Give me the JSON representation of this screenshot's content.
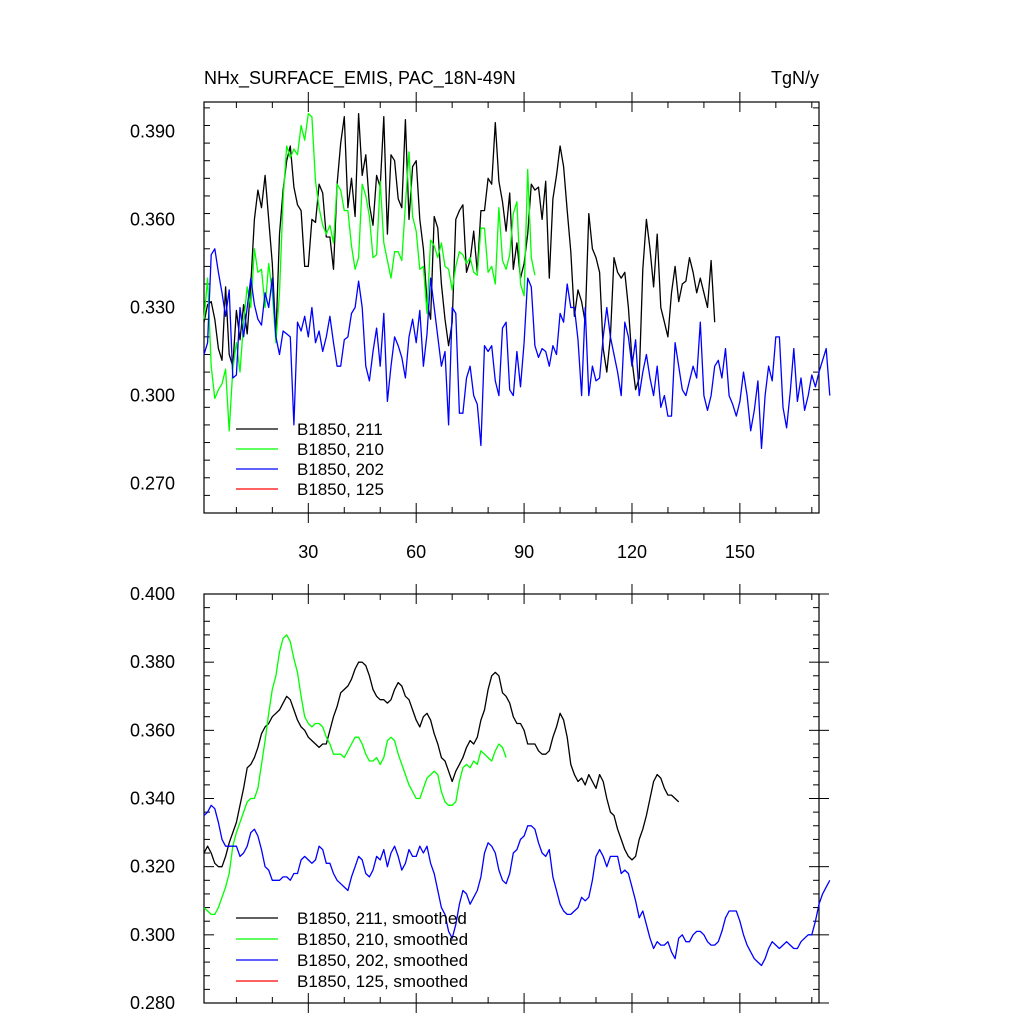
{
  "chart_data": [
    {
      "type": "line",
      "title": "NHx_SURFACE_EMIS, PAC_18N-49N",
      "units": "TgN/y",
      "xlim": [
        1,
        172
      ],
      "ylim": [
        0.26,
        0.4
      ],
      "x_ticks": [
        30,
        60,
        90,
        120,
        150
      ],
      "y_ticks": [
        0.27,
        0.3,
        0.33,
        0.36,
        0.39
      ],
      "y_tick_labels": [
        "0.270",
        "0.300",
        "0.330",
        "0.360",
        "0.390"
      ],
      "x_labels_shown": true,
      "legend_position": "bottom-left",
      "series": [
        {
          "name": "B1850, 211",
          "color": "#000000",
          "values": [
            0.325,
            0.331,
            0.332,
            0.326,
            0.316,
            0.312,
            0.337,
            0.314,
            0.31,
            0.329,
            0.319,
            0.331,
            0.321,
            0.338,
            0.36,
            0.37,
            0.364,
            0.375,
            0.36,
            0.345,
            0.32,
            0.355,
            0.37,
            0.38,
            0.385,
            0.371,
            0.365,
            0.363,
            0.344,
            0.344,
            0.36,
            0.359,
            0.372,
            0.369,
            0.354,
            0.354,
            0.343,
            0.372,
            0.386,
            0.395,
            0.364,
            0.374,
            0.361,
            0.396,
            0.375,
            0.382,
            0.365,
            0.358,
            0.375,
            0.371,
            0.395,
            0.355,
            0.382,
            0.38,
            0.367,
            0.364,
            0.394,
            0.36,
            0.378,
            0.38,
            0.36,
            0.35,
            0.332,
            0.326,
            0.361,
            0.357,
            0.338,
            0.326,
            0.317,
            0.325,
            0.36,
            0.363,
            0.365,
            0.342,
            0.346,
            0.356,
            0.342,
            0.363,
            0.363,
            0.374,
            0.372,
            0.393,
            0.373,
            0.366,
            0.356,
            0.369,
            0.343,
            0.352,
            0.34,
            0.345,
            0.355,
            0.372,
            0.37,
            0.371,
            0.36,
            0.373,
            0.34,
            0.367,
            0.375,
            0.385,
            0.378,
            0.363,
            0.349,
            0.327,
            0.336,
            0.332,
            0.325,
            0.362,
            0.35,
            0.347,
            0.342,
            0.316,
            0.308,
            0.32,
            0.347,
            0.342,
            0.34,
            0.342,
            0.33,
            0.312,
            0.302,
            0.306,
            0.343,
            0.36,
            0.35,
            0.337,
            0.355,
            0.33,
            0.325,
            0.32,
            0.335,
            0.344,
            0.332,
            0.338,
            0.339,
            0.347,
            0.342,
            0.335,
            0.34,
            0.335,
            0.33,
            0.346,
            0.325
          ]
        },
        {
          "name": "B1850, 210",
          "color": "#00ff00",
          "values": [
            0.326,
            0.34,
            0.31,
            0.299,
            0.302,
            0.304,
            0.309,
            0.288,
            0.309,
            0.318,
            0.308,
            0.325,
            0.337,
            0.33,
            0.35,
            0.342,
            0.343,
            0.33,
            0.345,
            0.335,
            0.318,
            0.335,
            0.367,
            0.385,
            0.381,
            0.384,
            0.382,
            0.392,
            0.387,
            0.396,
            0.395,
            0.373,
            0.364,
            0.358,
            0.355,
            0.358,
            0.352,
            0.372,
            0.37,
            0.363,
            0.363,
            0.351,
            0.343,
            0.347,
            0.372,
            0.368,
            0.361,
            0.347,
            0.348,
            0.373,
            0.352,
            0.346,
            0.34,
            0.349,
            0.349,
            0.346,
            0.365,
            0.383,
            0.361,
            0.356,
            0.343,
            0.344,
            0.328,
            0.353,
            0.351,
            0.347,
            0.352,
            0.344,
            0.343,
            0.336,
            0.344,
            0.349,
            0.348,
            0.345,
            0.347,
            0.342,
            0.341,
            0.357,
            0.357,
            0.342,
            0.344,
            0.338,
            0.364,
            0.346,
            0.343,
            0.348,
            0.362,
            0.366,
            0.338,
            0.334,
            0.377,
            0.347,
            0.341
          ]
        },
        {
          "name": "B1850, 202",
          "color": "#0000ff",
          "values": [
            0.314,
            0.318,
            0.348,
            0.35,
            0.342,
            0.335,
            0.327,
            0.336,
            0.306,
            0.307,
            0.33,
            0.32,
            0.33,
            0.34,
            0.331,
            0.326,
            0.324,
            0.335,
            0.33,
            0.34,
            0.32,
            0.314,
            0.322,
            0.321,
            0.32,
            0.29,
            0.325,
            0.322,
            0.327,
            0.32,
            0.33,
            0.318,
            0.322,
            0.315,
            0.32,
            0.327,
            0.318,
            0.31,
            0.31,
            0.319,
            0.32,
            0.328,
            0.33,
            0.339,
            0.33,
            0.31,
            0.305,
            0.315,
            0.323,
            0.31,
            0.328,
            0.298,
            0.31,
            0.32,
            0.317,
            0.313,
            0.306,
            0.32,
            0.326,
            0.318,
            0.329,
            0.31,
            0.321,
            0.34,
            0.33,
            0.32,
            0.31,
            0.315,
            0.29,
            0.33,
            0.328,
            0.294,
            0.294,
            0.306,
            0.31,
            0.3,
            0.297,
            0.283,
            0.317,
            0.315,
            0.317,
            0.305,
            0.3,
            0.323,
            0.325,
            0.302,
            0.3,
            0.315,
            0.303,
            0.318,
            0.34,
            0.337,
            0.317,
            0.313,
            0.316,
            0.315,
            0.31,
            0.317,
            0.314,
            0.328,
            0.325,
            0.338,
            0.33,
            0.33,
            0.319,
            0.3,
            0.33,
            0.3,
            0.31,
            0.305,
            0.306,
            0.32,
            0.33,
            0.32,
            0.314,
            0.308,
            0.3,
            0.325,
            0.32,
            0.31,
            0.319,
            0.3,
            0.308,
            0.314,
            0.306,
            0.3,
            0.31,
            0.296,
            0.3,
            0.293,
            0.293,
            0.318,
            0.31,
            0.302,
            0.3,
            0.305,
            0.31,
            0.306,
            0.325,
            0.3,
            0.295,
            0.3,
            0.31,
            0.312,
            0.306,
            0.316,
            0.3,
            0.297,
            0.293,
            0.298,
            0.308,
            0.3,
            0.288,
            0.295,
            0.305,
            0.282,
            0.3,
            0.31,
            0.305,
            0.32,
            0.32,
            0.296,
            0.289,
            0.301,
            0.316,
            0.298,
            0.306,
            0.295,
            0.3,
            0.307,
            0.303,
            0.308,
            0.312,
            0.316,
            0.3
          ]
        },
        {
          "name": "B1850, 125",
          "color": "#ff0000",
          "values": []
        }
      ]
    },
    {
      "type": "line",
      "xlim": [
        1,
        172
      ],
      "ylim": [
        0.28,
        0.4
      ],
      "x_ticks": [
        30,
        60,
        90,
        120,
        150
      ],
      "y_ticks": [
        0.28,
        0.3,
        0.32,
        0.34,
        0.36,
        0.38,
        0.4
      ],
      "y_tick_labels": [
        "0.280",
        "0.300",
        "0.320",
        "0.340",
        "0.360",
        "0.380",
        "0.400"
      ],
      "x_labels_shown": false,
      "legend_position": "bottom-left",
      "series": [
        {
          "name": "B1850, 211, smoothed",
          "color": "#000000",
          "values": [
            0.324,
            0.326,
            0.324,
            0.321,
            0.32,
            0.32,
            0.323,
            0.327,
            0.33,
            0.333,
            0.338,
            0.343,
            0.349,
            0.35,
            0.352,
            0.355,
            0.359,
            0.361,
            0.362,
            0.364,
            0.365,
            0.366,
            0.368,
            0.37,
            0.369,
            0.366,
            0.363,
            0.361,
            0.36,
            0.358,
            0.357,
            0.356,
            0.355,
            0.356,
            0.356,
            0.36,
            0.364,
            0.367,
            0.371,
            0.372,
            0.373,
            0.375,
            0.378,
            0.38,
            0.38,
            0.379,
            0.376,
            0.372,
            0.37,
            0.369,
            0.369,
            0.368,
            0.369,
            0.372,
            0.374,
            0.373,
            0.37,
            0.369,
            0.366,
            0.363,
            0.361,
            0.364,
            0.365,
            0.363,
            0.359,
            0.356,
            0.352,
            0.351,
            0.348,
            0.345,
            0.348,
            0.35,
            0.352,
            0.355,
            0.357,
            0.356,
            0.358,
            0.363,
            0.366,
            0.372,
            0.376,
            0.377,
            0.376,
            0.371,
            0.37,
            0.368,
            0.364,
            0.362,
            0.362,
            0.36,
            0.356,
            0.356,
            0.356,
            0.354,
            0.353,
            0.353,
            0.354,
            0.358,
            0.361,
            0.365,
            0.363,
            0.358,
            0.35,
            0.347,
            0.345,
            0.346,
            0.344,
            0.347,
            0.345,
            0.343,
            0.347,
            0.345,
            0.34,
            0.336,
            0.335,
            0.331,
            0.328,
            0.325,
            0.323,
            0.322,
            0.323,
            0.328,
            0.331,
            0.335,
            0.34,
            0.345,
            0.347,
            0.346,
            0.343,
            0.341,
            0.341,
            0.34,
            0.339
          ]
        },
        {
          "name": "B1850, 210, smoothed",
          "color": "#00ff00",
          "values": [
            0.308,
            0.307,
            0.306,
            0.306,
            0.308,
            0.311,
            0.314,
            0.318,
            0.326,
            0.33,
            0.333,
            0.336,
            0.339,
            0.34,
            0.34,
            0.343,
            0.35,
            0.357,
            0.365,
            0.372,
            0.376,
            0.383,
            0.387,
            0.388,
            0.386,
            0.381,
            0.377,
            0.37,
            0.364,
            0.362,
            0.361,
            0.362,
            0.362,
            0.361,
            0.358,
            0.356,
            0.353,
            0.353,
            0.353,
            0.352,
            0.354,
            0.356,
            0.358,
            0.358,
            0.356,
            0.353,
            0.351,
            0.351,
            0.352,
            0.35,
            0.352,
            0.357,
            0.358,
            0.357,
            0.353,
            0.35,
            0.347,
            0.344,
            0.342,
            0.34,
            0.34,
            0.343,
            0.346,
            0.347,
            0.348,
            0.347,
            0.342,
            0.339,
            0.338,
            0.338,
            0.339,
            0.345,
            0.349,
            0.35,
            0.349,
            0.351,
            0.35,
            0.354,
            0.353,
            0.352,
            0.351,
            0.354,
            0.356,
            0.355,
            0.352
          ]
        },
        {
          "name": "B1850, 202, smoothed",
          "color": "#0000ff",
          "values": [
            0.335,
            0.336,
            0.338,
            0.337,
            0.333,
            0.328,
            0.326,
            0.326,
            0.326,
            0.326,
            0.323,
            0.324,
            0.326,
            0.33,
            0.331,
            0.329,
            0.325,
            0.32,
            0.319,
            0.316,
            0.316,
            0.316,
            0.317,
            0.317,
            0.316,
            0.318,
            0.318,
            0.322,
            0.323,
            0.322,
            0.321,
            0.322,
            0.326,
            0.325,
            0.321,
            0.321,
            0.318,
            0.316,
            0.315,
            0.314,
            0.313,
            0.317,
            0.32,
            0.323,
            0.322,
            0.318,
            0.317,
            0.319,
            0.323,
            0.322,
            0.325,
            0.32,
            0.324,
            0.326,
            0.323,
            0.319,
            0.321,
            0.325,
            0.323,
            0.323,
            0.326,
            0.324,
            0.326,
            0.321,
            0.318,
            0.313,
            0.308,
            0.306,
            0.301,
            0.299,
            0.303,
            0.309,
            0.313,
            0.312,
            0.309,
            0.311,
            0.313,
            0.317,
            0.324,
            0.327,
            0.326,
            0.324,
            0.319,
            0.316,
            0.315,
            0.318,
            0.324,
            0.325,
            0.328,
            0.329,
            0.332,
            0.332,
            0.331,
            0.327,
            0.324,
            0.323,
            0.325,
            0.317,
            0.313,
            0.309,
            0.307,
            0.306,
            0.306,
            0.307,
            0.308,
            0.311,
            0.31,
            0.311,
            0.316,
            0.323,
            0.325,
            0.323,
            0.32,
            0.323,
            0.323,
            0.323,
            0.318,
            0.319,
            0.318,
            0.314,
            0.31,
            0.305,
            0.307,
            0.303,
            0.299,
            0.296,
            0.298,
            0.297,
            0.297,
            0.298,
            0.295,
            0.293,
            0.299,
            0.3,
            0.298,
            0.298,
            0.3,
            0.301,
            0.301,
            0.3,
            0.298,
            0.297,
            0.297,
            0.298,
            0.301,
            0.305,
            0.307,
            0.307,
            0.307,
            0.304,
            0.3,
            0.297,
            0.295,
            0.293,
            0.292,
            0.291,
            0.293,
            0.296,
            0.298,
            0.297,
            0.296,
            0.297,
            0.298,
            0.297,
            0.296,
            0.296,
            0.298,
            0.299,
            0.3,
            0.3,
            0.304,
            0.309,
            0.312,
            0.314,
            0.316
          ]
        },
        {
          "name": "B1850, 125, smoothed",
          "color": "#ff0000",
          "values": []
        }
      ]
    }
  ]
}
